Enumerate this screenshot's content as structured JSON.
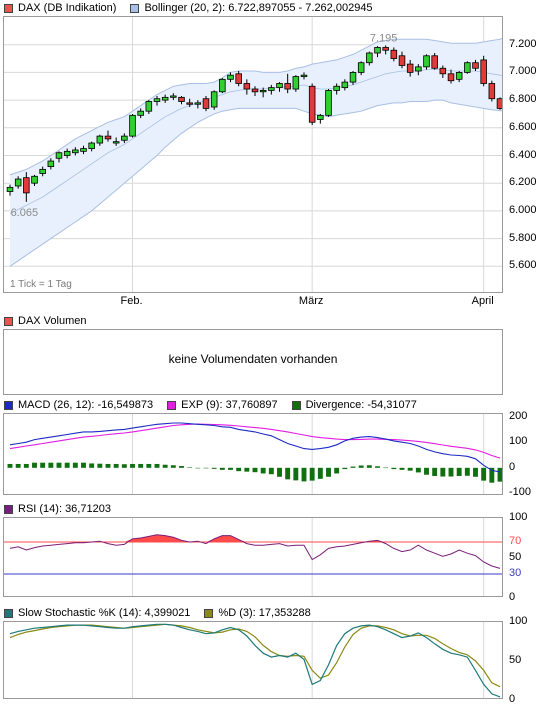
{
  "colors": {
    "band_fill": "#e7f0fc",
    "band_line": "#a9bfe4",
    "mid_line": "#a9bfe4",
    "up": "#2fd02f",
    "down": "#e03a3a",
    "grid": "#d8d8d8",
    "macd": "#1d2bc4",
    "exp": "#e21de2",
    "divergence": "#107010",
    "rsi": "#7a1e7a",
    "rsi_ob": "#ff4a4a",
    "rsi_os": "#3a3ac8",
    "sto_k": "#1e7a7a",
    "sto_d": "#8a8a14"
  },
  "legends": {
    "price": {
      "series_label": "DAX (DB Indikation)",
      "series_color": "#f05050",
      "bb_label": "Bollinger (20, 2): 6.722,897055 - 7.262,002945",
      "bb_color": "#a8c0e8"
    },
    "volume": {
      "label": "DAX Volumen",
      "color": "#f05050"
    },
    "macd": {
      "macd_label": "MACD (26, 12): -16,549873",
      "macd_color": "#1d2bc4",
      "exp_label": "EXP (9): 37,760897",
      "exp_color": "#e21de2",
      "div_label": "Divergence: -54,31077",
      "div_color": "#107010"
    },
    "rsi": {
      "label": "RSI (14): 36,71203",
      "color": "#7a1e7a"
    },
    "sto": {
      "k_label": "Slow Stochastic %K (14): 4,399021",
      "k_color": "#1e7a7a",
      "d_label": "%D (3): 17,353288",
      "d_color": "#8a8a14"
    }
  },
  "volume_panel": {
    "message": "keine Volumendaten vorhanden"
  },
  "price_panel": {
    "tick_note": "1 Tick = 1 Tag",
    "low_label": "6.065",
    "high_label": "7.195"
  },
  "x_labels": [
    "Feb.",
    "März",
    "April"
  ],
  "chart_data": [
    {
      "type": "candlestick",
      "title": "DAX (DB Indikation)",
      "ylim": [
        5400,
        7400
      ],
      "yticks": [
        "7.200",
        "7.000",
        "6.800",
        "6.600",
        "6.400",
        "6.200",
        "6.000",
        "5.800",
        "5.600"
      ],
      "ytick_values": [
        7200,
        7000,
        6800,
        6600,
        6400,
        6200,
        6000,
        5800,
        5600
      ],
      "x_tick_index": {
        "Feb.": 15,
        "März": 37,
        "April": 58
      },
      "candles": [
        {
          "o": 6140,
          "h": 6190,
          "l": 6110,
          "c": 6170
        },
        {
          "o": 6180,
          "h": 6250,
          "l": 6160,
          "c": 6230
        },
        {
          "o": 6240,
          "h": 6280,
          "l": 6065,
          "c": 6130
        },
        {
          "o": 6200,
          "h": 6260,
          "l": 6180,
          "c": 6250
        },
        {
          "o": 6270,
          "h": 6320,
          "l": 6250,
          "c": 6300
        },
        {
          "o": 6320,
          "h": 6380,
          "l": 6300,
          "c": 6360
        },
        {
          "o": 6380,
          "h": 6430,
          "l": 6350,
          "c": 6420
        },
        {
          "o": 6400,
          "h": 6450,
          "l": 6380,
          "c": 6430
        },
        {
          "o": 6420,
          "h": 6460,
          "l": 6400,
          "c": 6440
        },
        {
          "o": 6430,
          "h": 6470,
          "l": 6410,
          "c": 6450
        },
        {
          "o": 6450,
          "h": 6500,
          "l": 6430,
          "c": 6490
        },
        {
          "o": 6490,
          "h": 6550,
          "l": 6470,
          "c": 6540
        },
        {
          "o": 6540,
          "h": 6580,
          "l": 6500,
          "c": 6520
        },
        {
          "o": 6490,
          "h": 6530,
          "l": 6470,
          "c": 6500
        },
        {
          "o": 6510,
          "h": 6560,
          "l": 6490,
          "c": 6540
        },
        {
          "o": 6540,
          "h": 6700,
          "l": 6530,
          "c": 6690
        },
        {
          "o": 6690,
          "h": 6740,
          "l": 6670,
          "c": 6720
        },
        {
          "o": 6720,
          "h": 6800,
          "l": 6700,
          "c": 6790
        },
        {
          "o": 6790,
          "h": 6830,
          "l": 6760,
          "c": 6810
        },
        {
          "o": 6800,
          "h": 6840,
          "l": 6780,
          "c": 6820
        },
        {
          "o": 6820,
          "h": 6850,
          "l": 6800,
          "c": 6830
        },
        {
          "o": 6820,
          "h": 6830,
          "l": 6770,
          "c": 6790
        },
        {
          "o": 6780,
          "h": 6810,
          "l": 6750,
          "c": 6770
        },
        {
          "o": 6770,
          "h": 6800,
          "l": 6740,
          "c": 6780
        },
        {
          "o": 6810,
          "h": 6830,
          "l": 6720,
          "c": 6740
        },
        {
          "o": 6750,
          "h": 6870,
          "l": 6730,
          "c": 6860
        },
        {
          "o": 6860,
          "h": 6960,
          "l": 6850,
          "c": 6950
        },
        {
          "o": 6950,
          "h": 7000,
          "l": 6930,
          "c": 6980
        },
        {
          "o": 6990,
          "h": 7010,
          "l": 6900,
          "c": 6920
        },
        {
          "o": 6920,
          "h": 6950,
          "l": 6840,
          "c": 6880
        },
        {
          "o": 6880,
          "h": 6900,
          "l": 6830,
          "c": 6860
        },
        {
          "o": 6860,
          "h": 6890,
          "l": 6820,
          "c": 6870
        },
        {
          "o": 6870,
          "h": 6910,
          "l": 6840,
          "c": 6890
        },
        {
          "o": 6890,
          "h": 6930,
          "l": 6860,
          "c": 6920
        },
        {
          "o": 6920,
          "h": 6990,
          "l": 6850,
          "c": 6880
        },
        {
          "o": 6880,
          "h": 6980,
          "l": 6860,
          "c": 6970
        },
        {
          "o": 6970,
          "h": 7000,
          "l": 6950,
          "c": 6980
        },
        {
          "o": 6900,
          "h": 6920,
          "l": 6620,
          "c": 6640
        },
        {
          "o": 6660,
          "h": 6700,
          "l": 6630,
          "c": 6690
        },
        {
          "o": 6690,
          "h": 6880,
          "l": 6680,
          "c": 6870
        },
        {
          "o": 6870,
          "h": 6920,
          "l": 6840,
          "c": 6900
        },
        {
          "o": 6890,
          "h": 6950,
          "l": 6870,
          "c": 6930
        },
        {
          "o": 6930,
          "h": 7010,
          "l": 6910,
          "c": 7000
        },
        {
          "o": 7000,
          "h": 7080,
          "l": 6980,
          "c": 7070
        },
        {
          "o": 7070,
          "h": 7150,
          "l": 7050,
          "c": 7140
        },
        {
          "o": 7140,
          "h": 7190,
          "l": 7110,
          "c": 7180
        },
        {
          "o": 7180,
          "h": 7195,
          "l": 7130,
          "c": 7160
        },
        {
          "o": 7160,
          "h": 7180,
          "l": 7080,
          "c": 7100
        },
        {
          "o": 7120,
          "h": 7150,
          "l": 7030,
          "c": 7050
        },
        {
          "o": 7060,
          "h": 7090,
          "l": 6970,
          "c": 7000
        },
        {
          "o": 7010,
          "h": 7060,
          "l": 6980,
          "c": 7040
        },
        {
          "o": 7040,
          "h": 7130,
          "l": 7020,
          "c": 7120
        },
        {
          "o": 7120,
          "h": 7140,
          "l": 7020,
          "c": 7030
        },
        {
          "o": 7030,
          "h": 7050,
          "l": 6960,
          "c": 6990
        },
        {
          "o": 6990,
          "h": 7020,
          "l": 6920,
          "c": 6940
        },
        {
          "o": 6950,
          "h": 7010,
          "l": 6930,
          "c": 7000
        },
        {
          "o": 7000,
          "h": 7080,
          "l": 6990,
          "c": 7070
        },
        {
          "o": 7070,
          "h": 7090,
          "l": 7010,
          "c": 7030
        },
        {
          "o": 7090,
          "h": 7120,
          "l": 6900,
          "c": 6920
        },
        {
          "o": 6920,
          "h": 6940,
          "l": 6790,
          "c": 6810
        },
        {
          "o": 6810,
          "h": 6820,
          "l": 6730,
          "c": 6740
        },
        {
          "o": 6740,
          "h": 6760,
          "l": 6660,
          "c": 6680
        }
      ],
      "bollinger_upper": [
        6260,
        6280,
        6300,
        6330,
        6360,
        6400,
        6440,
        6480,
        6520,
        6550,
        6580,
        6610,
        6640,
        6660,
        6680,
        6720,
        6760,
        6800,
        6840,
        6870,
        6900,
        6910,
        6920,
        6920,
        6920,
        6930,
        6960,
        7000,
        7010,
        7010,
        7010,
        7000,
        7000,
        7000,
        7010,
        7030,
        7040,
        7060,
        7070,
        7080,
        7090,
        7110,
        7130,
        7160,
        7190,
        7220,
        7230,
        7240,
        7240,
        7240,
        7240,
        7240,
        7230,
        7220,
        7210,
        7210,
        7210,
        7210,
        7220,
        7230,
        7240,
        7262
      ],
      "bollinger_middle": [
        5980,
        6010,
        6040,
        6070,
        6100,
        6140,
        6180,
        6220,
        6260,
        6300,
        6340,
        6380,
        6420,
        6450,
        6480,
        6520,
        6560,
        6600,
        6640,
        6680,
        6710,
        6740,
        6760,
        6780,
        6800,
        6820,
        6840,
        6860,
        6870,
        6880,
        6880,
        6880,
        6890,
        6890,
        6900,
        6900,
        6910,
        6890,
        6880,
        6880,
        6890,
        6900,
        6910,
        6930,
        6950,
        6970,
        6990,
        7000,
        7010,
        7010,
        7010,
        7020,
        7020,
        7020,
        7010,
        7010,
        7010,
        7010,
        7000,
        6990,
        6980,
        6970
      ],
      "bollinger_lower": [
        5600,
        5640,
        5680,
        5720,
        5760,
        5800,
        5840,
        5880,
        5920,
        5960,
        6000,
        6050,
        6100,
        6150,
        6200,
        6250,
        6300,
        6350,
        6400,
        6460,
        6510,
        6560,
        6600,
        6640,
        6670,
        6700,
        6720,
        6730,
        6740,
        6740,
        6740,
        6740,
        6740,
        6740,
        6740,
        6740,
        6720,
        6700,
        6690,
        6680,
        6690,
        6700,
        6710,
        6720,
        6740,
        6760,
        6770,
        6780,
        6780,
        6790,
        6790,
        6790,
        6800,
        6800,
        6780,
        6770,
        6760,
        6750,
        6740,
        6730,
        6723,
        6723
      ]
    },
    {
      "type": "line",
      "title": "MACD (26, 12)",
      "ylim": [
        -110,
        210
      ],
      "yticks": [
        "200",
        "100",
        "0",
        "-100"
      ],
      "ytick_values": [
        200,
        100,
        0,
        -100
      ],
      "series": [
        {
          "name": "MACD (26, 12)",
          "values": [
            90,
            95,
            100,
            110,
            115,
            120,
            125,
            130,
            135,
            140,
            140,
            142,
            145,
            148,
            150,
            155,
            160,
            165,
            170,
            172,
            175,
            175,
            172,
            170,
            168,
            165,
            160,
            158,
            150,
            145,
            140,
            132,
            125,
            110,
            95,
            85,
            75,
            72,
            75,
            80,
            90,
            105,
            115,
            120,
            122,
            118,
            112,
            105,
            100,
            95,
            85,
            72,
            62,
            55,
            50,
            48,
            45,
            35,
            10,
            -10,
            -16
          ]
        },
        {
          "name": "EXP (9)",
          "values": [
            75,
            80,
            85,
            90,
            95,
            100,
            105,
            110,
            115,
            120,
            123,
            126,
            130,
            133,
            136,
            140,
            145,
            150,
            155,
            160,
            165,
            168,
            170,
            171,
            170,
            169,
            168,
            166,
            163,
            160,
            157,
            154,
            150,
            145,
            140,
            134,
            128,
            122,
            118,
            115,
            112,
            110,
            110,
            111,
            112,
            112,
            111,
            110,
            108,
            106,
            103,
            99,
            94,
            89,
            84,
            80,
            76,
            70,
            60,
            48,
            38
          ]
        },
        {
          "name": "Divergence",
          "type": "bar",
          "values": [
            15,
            15,
            15,
            20,
            20,
            20,
            20,
            20,
            20,
            20,
            17,
            16,
            15,
            15,
            14,
            15,
            15,
            15,
            15,
            12,
            10,
            7,
            2,
            -1,
            -2,
            -4,
            -8,
            -8,
            -13,
            -15,
            -17,
            -22,
            -25,
            -35,
            -45,
            -49,
            -53,
            -50,
            -43,
            -35,
            -22,
            -5,
            5,
            9,
            10,
            6,
            1,
            -5,
            -8,
            -11,
            -18,
            -27,
            -32,
            -34,
            -34,
            -32,
            -31,
            -35,
            -50,
            -58,
            -54
          ]
        }
      ]
    },
    {
      "type": "line",
      "title": "RSI (14)",
      "ylim": [
        0,
        100
      ],
      "yticks": [
        "100",
        "70",
        "50",
        "30",
        "0"
      ],
      "ytick_values": [
        100,
        70,
        50,
        30,
        0
      ],
      "reference_lines": [
        70,
        30
      ],
      "series": [
        {
          "name": "RSI (14)",
          "values": [
            62,
            64,
            60,
            63,
            65,
            66,
            67,
            68,
            69,
            69,
            70,
            71,
            68,
            66,
            67,
            74,
            75,
            77,
            79,
            78,
            76,
            72,
            70,
            71,
            68,
            74,
            78,
            78,
            73,
            68,
            66,
            66,
            67,
            68,
            65,
            66,
            66,
            48,
            54,
            62,
            64,
            65,
            67,
            69,
            71,
            72,
            68,
            62,
            58,
            60,
            66,
            60,
            56,
            52,
            55,
            60,
            56,
            53,
            45,
            40,
            37
          ]
        }
      ]
    },
    {
      "type": "line",
      "title": "Slow Stochastic",
      "ylim": [
        0,
        100
      ],
      "yticks": [
        "100",
        "50",
        "0"
      ],
      "ytick_values": [
        100,
        50,
        0
      ],
      "series": [
        {
          "name": "Slow Stochastic %K (14)",
          "values": [
            85,
            88,
            90,
            92,
            93,
            94,
            95,
            96,
            96,
            96,
            95,
            94,
            93,
            92,
            92,
            94,
            95,
            96,
            97,
            97,
            96,
            93,
            90,
            88,
            85,
            86,
            90,
            93,
            90,
            82,
            70,
            60,
            55,
            57,
            55,
            60,
            52,
            20,
            25,
            45,
            70,
            85,
            92,
            95,
            96,
            94,
            90,
            85,
            80,
            82,
            86,
            80,
            72,
            65,
            60,
            58,
            55,
            38,
            20,
            8,
            4
          ]
        },
        {
          "name": "%D (3)",
          "values": [
            80,
            84,
            87,
            89,
            91,
            93,
            94,
            95,
            96,
            96,
            96,
            95,
            94,
            93,
            92,
            93,
            94,
            95,
            96,
            97,
            96,
            95,
            93,
            90,
            88,
            86,
            87,
            90,
            91,
            88,
            81,
            70,
            62,
            57,
            56,
            57,
            56,
            38,
            28,
            32,
            48,
            68,
            84,
            92,
            95,
            95,
            93,
            90,
            85,
            82,
            83,
            83,
            79,
            72,
            66,
            61,
            58,
            50,
            38,
            22,
            17
          ]
        }
      ]
    }
  ]
}
